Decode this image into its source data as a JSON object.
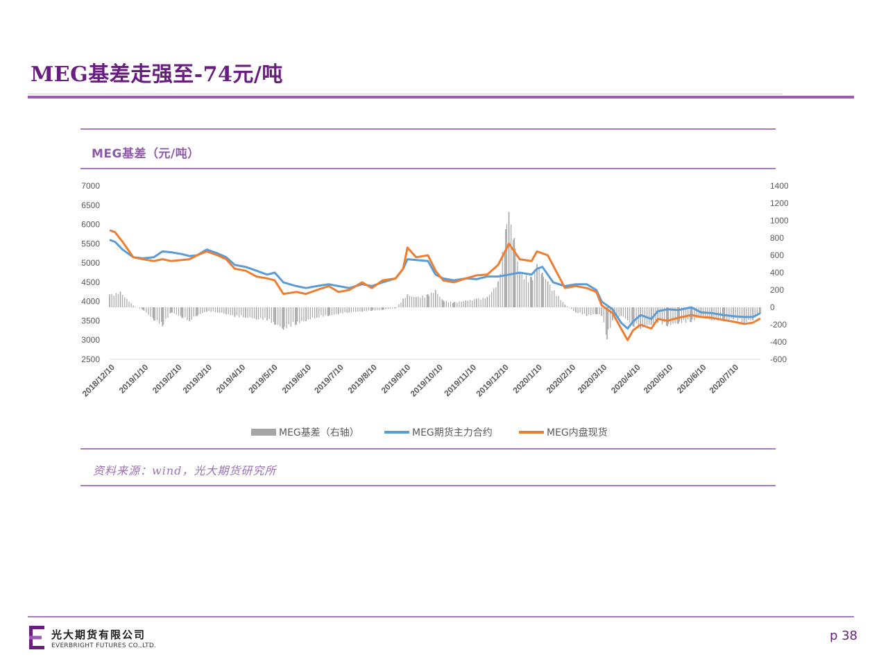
{
  "page": {
    "title": "MEG基差走强至-74元/吨",
    "page_number": "p 38",
    "company_cn": "光大期货有限公司",
    "company_en": "EVERBRIGHT FUTURES CO.,LTD."
  },
  "chart_data": {
    "type": "combo",
    "title": "MEG基差（元/吨）",
    "source": "资料来源：wind，光大期货研究所",
    "left_axis": {
      "ylim": [
        2500,
        7000
      ],
      "ticks": [
        7000,
        6500,
        6000,
        5500,
        5000,
        4500,
        4000,
        3500,
        3000,
        2500
      ]
    },
    "right_axis": {
      "ylim": [
        -600,
        1400
      ],
      "ticks": [
        1400,
        1200,
        1000,
        800,
        600,
        400,
        200,
        0,
        -200,
        -400,
        -600
      ]
    },
    "x_domain": [
      "2018/12/10",
      "2020/8/4"
    ],
    "x_tick_labels": [
      "2018/12/10",
      "2019/1/10",
      "2019/2/10",
      "2019/3/10",
      "2019/4/10",
      "2019/5/10",
      "2019/6/10",
      "2019/7/10",
      "2019/8/10",
      "2019/9/10",
      "2019/10/10",
      "2019/11/10",
      "2019/12/10",
      "2020/1/10",
      "2020/2/10",
      "2020/3/10",
      "2020/4/10",
      "2020/5/10",
      "2020/6/10",
      "2020/7/10"
    ],
    "legend_position": "bottom",
    "colors": {
      "basis": "#a5a5a5",
      "futures": "#5b9bd5",
      "spot": "#ed7d31"
    },
    "series": [
      {
        "name": "MEG期货主力合约",
        "axis": "left",
        "points": [
          [
            "2018/12/10",
            5600
          ],
          [
            "2018/12/15",
            5550
          ],
          [
            "2018/12/22",
            5350
          ],
          [
            "2019/1/1",
            5150
          ],
          [
            "2019/1/10",
            5120
          ],
          [
            "2019/1/20",
            5150
          ],
          [
            "2019/1/28",
            5300
          ],
          [
            "2019/2/5",
            5280
          ],
          [
            "2019/2/15",
            5230
          ],
          [
            "2019/2/22",
            5180
          ],
          [
            "2019/3/1",
            5200
          ],
          [
            "2019/3/10",
            5350
          ],
          [
            "2019/3/20",
            5250
          ],
          [
            "2019/3/28",
            5150
          ],
          [
            "2019/4/5",
            4950
          ],
          [
            "2019/4/15",
            4900
          ],
          [
            "2019/4/25",
            4800
          ],
          [
            "2019/5/5",
            4700
          ],
          [
            "2019/5/12",
            4750
          ],
          [
            "2019/5/20",
            4500
          ],
          [
            "2019/6/1",
            4400
          ],
          [
            "2019/6/10",
            4350
          ],
          [
            "2019/6/20",
            4400
          ],
          [
            "2019/7/1",
            4450
          ],
          [
            "2019/7/10",
            4400
          ],
          [
            "2019/7/20",
            4350
          ],
          [
            "2019/8/1",
            4450
          ],
          [
            "2019/8/10",
            4400
          ],
          [
            "2019/8/20",
            4500
          ],
          [
            "2019/9/1",
            4600
          ],
          [
            "2019/9/8",
            4850
          ],
          [
            "2019/9/12",
            5100
          ],
          [
            "2019/9/20",
            5080
          ],
          [
            "2019/10/1",
            5050
          ],
          [
            "2019/10/8",
            4700
          ],
          [
            "2019/10/15",
            4600
          ],
          [
            "2019/10/25",
            4550
          ],
          [
            "2019/11/5",
            4600
          ],
          [
            "2019/11/15",
            4580
          ],
          [
            "2019/11/25",
            4650
          ],
          [
            "2019/12/5",
            4650
          ],
          [
            "2019/12/15",
            4700
          ],
          [
            "2019/12/25",
            4750
          ],
          [
            "2020/1/5",
            4700
          ],
          [
            "2020/1/10",
            4850
          ],
          [
            "2020/1/15",
            4900
          ],
          [
            "2020/1/25",
            4500
          ],
          [
            "2020/2/5",
            4400
          ],
          [
            "2020/2/15",
            4450
          ],
          [
            "2020/2/25",
            4450
          ],
          [
            "2020/3/5",
            4300
          ],
          [
            "2020/3/10",
            4000
          ],
          [
            "2020/3/20",
            3800
          ],
          [
            "2020/3/28",
            3450
          ],
          [
            "2020/4/3",
            3300
          ],
          [
            "2020/4/8",
            3480
          ],
          [
            "2020/4/15",
            3650
          ],
          [
            "2020/4/25",
            3550
          ],
          [
            "2020/5/1",
            3750
          ],
          [
            "2020/5/10",
            3800
          ],
          [
            "2020/5/20",
            3780
          ],
          [
            "2020/6/1",
            3850
          ],
          [
            "2020/6/10",
            3720
          ],
          [
            "2020/6/20",
            3700
          ],
          [
            "2020/7/1",
            3650
          ],
          [
            "2020/7/10",
            3620
          ],
          [
            "2020/7/20",
            3600
          ],
          [
            "2020/7/28",
            3600
          ],
          [
            "2020/8/4",
            3700
          ]
        ]
      },
      {
        "name": "MEG内盘现货",
        "axis": "left",
        "points": [
          [
            "2018/12/10",
            5850
          ],
          [
            "2018/12/15",
            5800
          ],
          [
            "2018/12/22",
            5550
          ],
          [
            "2019/1/1",
            5150
          ],
          [
            "2019/1/10",
            5100
          ],
          [
            "2019/1/20",
            5050
          ],
          [
            "2019/1/28",
            5100
          ],
          [
            "2019/2/5",
            5050
          ],
          [
            "2019/2/15",
            5080
          ],
          [
            "2019/2/22",
            5100
          ],
          [
            "2019/3/1",
            5200
          ],
          [
            "2019/3/10",
            5300
          ],
          [
            "2019/3/20",
            5200
          ],
          [
            "2019/3/28",
            5100
          ],
          [
            "2019/4/5",
            4850
          ],
          [
            "2019/4/15",
            4800
          ],
          [
            "2019/4/25",
            4650
          ],
          [
            "2019/5/5",
            4600
          ],
          [
            "2019/5/12",
            4550
          ],
          [
            "2019/5/20",
            4200
          ],
          [
            "2019/6/1",
            4250
          ],
          [
            "2019/6/10",
            4200
          ],
          [
            "2019/6/20",
            4300
          ],
          [
            "2019/7/1",
            4400
          ],
          [
            "2019/7/10",
            4250
          ],
          [
            "2019/7/20",
            4300
          ],
          [
            "2019/8/1",
            4500
          ],
          [
            "2019/8/10",
            4350
          ],
          [
            "2019/8/20",
            4550
          ],
          [
            "2019/9/1",
            4600
          ],
          [
            "2019/9/8",
            4850
          ],
          [
            "2019/9/12",
            5400
          ],
          [
            "2019/9/20",
            5150
          ],
          [
            "2019/10/1",
            5200
          ],
          [
            "2019/10/8",
            4800
          ],
          [
            "2019/10/15",
            4550
          ],
          [
            "2019/10/25",
            4500
          ],
          [
            "2019/11/5",
            4600
          ],
          [
            "2019/11/15",
            4680
          ],
          [
            "2019/11/25",
            4700
          ],
          [
            "2019/12/5",
            4950
          ],
          [
            "2019/12/15",
            5500
          ],
          [
            "2019/12/25",
            5100
          ],
          [
            "2020/1/5",
            5050
          ],
          [
            "2020/1/10",
            5300
          ],
          [
            "2020/1/15",
            5250
          ],
          [
            "2020/1/20",
            5200
          ],
          [
            "2020/2/5",
            4350
          ],
          [
            "2020/2/15",
            4400
          ],
          [
            "2020/2/25",
            4350
          ],
          [
            "2020/3/5",
            4250
          ],
          [
            "2020/3/10",
            3900
          ],
          [
            "2020/3/20",
            3700
          ],
          [
            "2020/3/28",
            3300
          ],
          [
            "2020/4/3",
            3000
          ],
          [
            "2020/4/8",
            3250
          ],
          [
            "2020/4/15",
            3400
          ],
          [
            "2020/4/25",
            3300
          ],
          [
            "2020/5/1",
            3550
          ],
          [
            "2020/5/10",
            3500
          ],
          [
            "2020/5/20",
            3580
          ],
          [
            "2020/6/1",
            3650
          ],
          [
            "2020/6/10",
            3600
          ],
          [
            "2020/6/20",
            3580
          ],
          [
            "2020/7/1",
            3520
          ],
          [
            "2020/7/10",
            3480
          ],
          [
            "2020/7/20",
            3420
          ],
          [
            "2020/7/28",
            3450
          ],
          [
            "2020/8/4",
            3560
          ]
        ]
      },
      {
        "name": "MEG基差（右轴）",
        "axis": "right",
        "type": "bar",
        "points": [
          [
            "2018/12/10",
            150
          ],
          [
            "2018/12/20",
            180
          ],
          [
            "2019/1/1",
            20
          ],
          [
            "2019/1/10",
            -30
          ],
          [
            "2019/1/20",
            -150
          ],
          [
            "2019/1/28",
            -220
          ],
          [
            "2019/2/5",
            -60
          ],
          [
            "2019/2/15",
            -120
          ],
          [
            "2019/2/22",
            -160
          ],
          [
            "2019/3/1",
            -100
          ],
          [
            "2019/3/10",
            -50
          ],
          [
            "2019/3/20",
            -60
          ],
          [
            "2019/3/28",
            -80
          ],
          [
            "2019/4/5",
            -110
          ],
          [
            "2019/4/15",
            -120
          ],
          [
            "2019/4/25",
            -140
          ],
          [
            "2019/5/5",
            -150
          ],
          [
            "2019/5/12",
            -200
          ],
          [
            "2019/5/20",
            -260
          ],
          [
            "2019/6/1",
            -200
          ],
          [
            "2019/6/10",
            -160
          ],
          [
            "2019/6/20",
            -120
          ],
          [
            "2019/7/1",
            -100
          ],
          [
            "2019/7/10",
            -80
          ],
          [
            "2019/7/20",
            -60
          ],
          [
            "2019/8/1",
            -50
          ],
          [
            "2019/8/10",
            -40
          ],
          [
            "2019/8/20",
            -30
          ],
          [
            "2019/9/1",
            -10
          ],
          [
            "2019/9/8",
            100
          ],
          [
            "2019/9/12",
            150
          ],
          [
            "2019/9/20",
            120
          ],
          [
            "2019/10/1",
            150
          ],
          [
            "2019/10/8",
            200
          ],
          [
            "2019/10/15",
            80
          ],
          [
            "2019/10/25",
            60
          ],
          [
            "2019/11/5",
            80
          ],
          [
            "2019/11/15",
            100
          ],
          [
            "2019/11/25",
            120
          ],
          [
            "2019/12/5",
            300
          ],
          [
            "2019/12/12",
            900
          ],
          [
            "2019/12/15",
            1100
          ],
          [
            "2019/12/20",
            800
          ],
          [
            "2019/12/25",
            400
          ],
          [
            "2020/1/5",
            350
          ],
          [
            "2020/1/10",
            500
          ],
          [
            "2020/1/15",
            400
          ],
          [
            "2020/1/20",
            300
          ],
          [
            "2020/2/5",
            30
          ],
          [
            "2020/2/15",
            -60
          ],
          [
            "2020/2/25",
            -100
          ],
          [
            "2020/3/5",
            -80
          ],
          [
            "2020/3/10",
            -100
          ],
          [
            "2020/3/15",
            -370
          ],
          [
            "2020/3/20",
            -150
          ],
          [
            "2020/3/28",
            -100
          ],
          [
            "2020/4/3",
            -150
          ],
          [
            "2020/4/8",
            -220
          ],
          [
            "2020/4/15",
            -250
          ],
          [
            "2020/4/25",
            -200
          ],
          [
            "2020/5/1",
            -180
          ],
          [
            "2020/5/10",
            -220
          ],
          [
            "2020/5/20",
            -190
          ],
          [
            "2020/6/1",
            -170
          ],
          [
            "2020/6/10",
            -120
          ],
          [
            "2020/6/20",
            -150
          ],
          [
            "2020/7/1",
            -160
          ],
          [
            "2020/7/10",
            -140
          ],
          [
            "2020/7/20",
            -180
          ],
          [
            "2020/7/28",
            -150
          ],
          [
            "2020/8/4",
            -74
          ]
        ]
      }
    ]
  }
}
